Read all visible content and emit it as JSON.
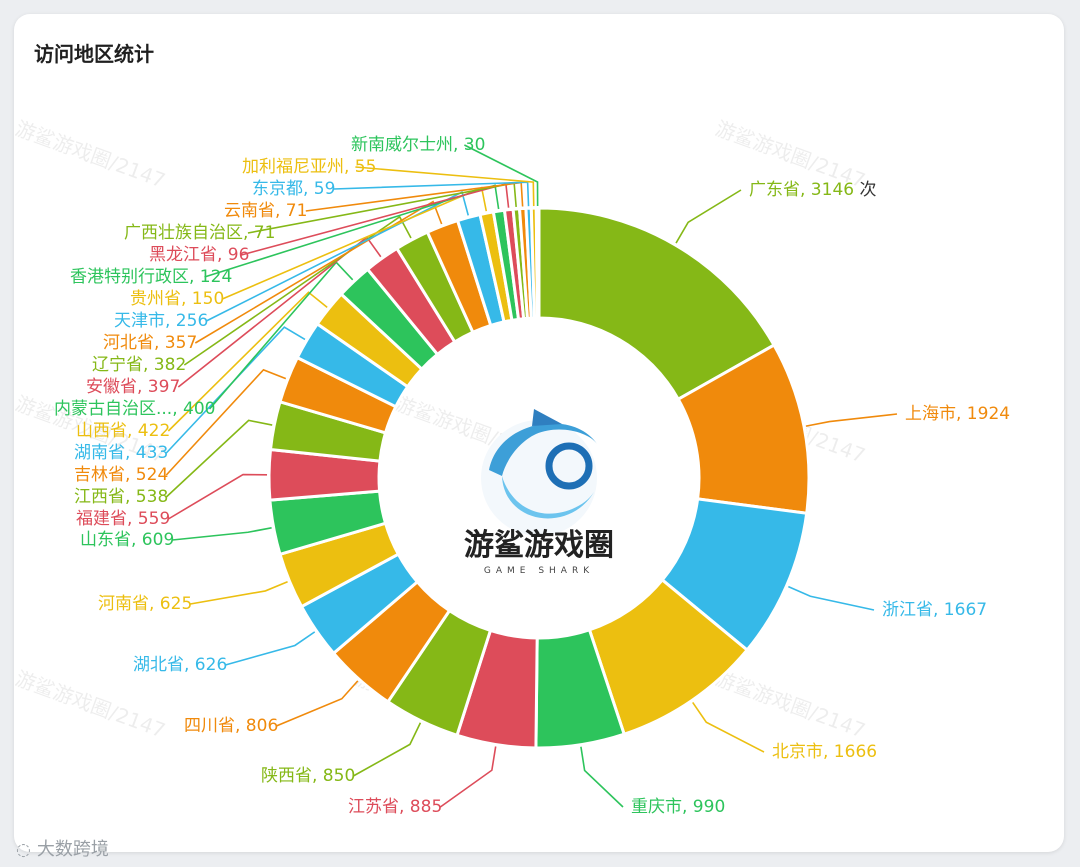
{
  "card": {
    "title": "访问地区统计"
  },
  "watermark": {
    "text": "游鲨游戏圈/2147"
  },
  "logo": {
    "name": "游鲨游戏圈",
    "subtitle": "GAME SHARK"
  },
  "footer": {
    "source": "大数跨境"
  },
  "colors": {
    "palette": [
      "#85b817",
      "#f08a0c",
      "#36b9e8",
      "#ecbf10",
      "#2dc45c",
      "#dd4c5a"
    ]
  },
  "chart_data": {
    "type": "pie",
    "variant": "donut",
    "unit": "次",
    "slices": [
      {
        "label": "广东省",
        "value": 3146
      },
      {
        "label": "上海市",
        "value": 1924
      },
      {
        "label": "浙江省",
        "value": 1667
      },
      {
        "label": "北京市",
        "value": 1666
      },
      {
        "label": "重庆市",
        "value": 990
      },
      {
        "label": "江苏省",
        "value": 885
      },
      {
        "label": "陕西省",
        "value": 850
      },
      {
        "label": "四川省",
        "value": 806
      },
      {
        "label": "湖北省",
        "value": 626
      },
      {
        "label": "河南省",
        "value": 625
      },
      {
        "label": "山东省",
        "value": 609
      },
      {
        "label": "福建省",
        "value": 559
      },
      {
        "label": "江西省",
        "value": 538
      },
      {
        "label": "吉林省",
        "value": 524
      },
      {
        "label": "湖南省",
        "value": 433
      },
      {
        "label": "山西省",
        "value": 422
      },
      {
        "label": "内蒙古自治区...",
        "value": 400
      },
      {
        "label": "安徽省",
        "value": 397
      },
      {
        "label": "辽宁省",
        "value": 382
      },
      {
        "label": "河北省",
        "value": 357
      },
      {
        "label": "天津市",
        "value": 256
      },
      {
        "label": "贵州省",
        "value": 150
      },
      {
        "label": "香港特别行政区",
        "value": 124
      },
      {
        "label": "黑龙江省",
        "value": 96
      },
      {
        "label": "广西壮族自治区",
        "value": 71
      },
      {
        "label": "云南省",
        "value": 71
      },
      {
        "label": "东京都",
        "value": 59
      },
      {
        "label": "加利福尼亚州",
        "value": 55
      },
      {
        "label": "新南威尔士州",
        "value": 30
      }
    ]
  }
}
